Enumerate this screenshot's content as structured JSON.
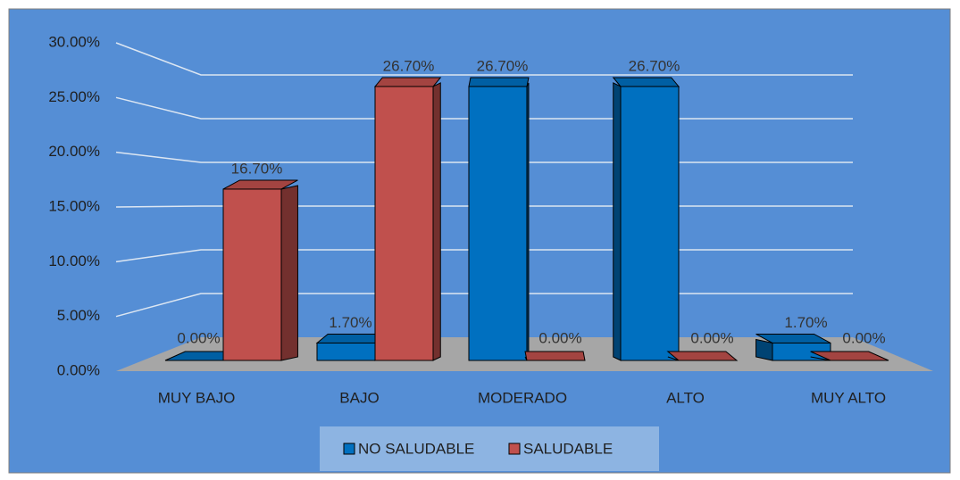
{
  "chart_data": {
    "type": "bar3d",
    "categories": [
      "MUY BAJO",
      "BAJO",
      "MODERADO",
      "ALTO",
      "MUY ALTO"
    ],
    "series": [
      {
        "name": "NO SALUDABLE",
        "color": "#0070c0",
        "values": [
          0,
          1.7,
          26.7,
          26.7,
          1.7
        ],
        "value_labels": [
          "0.00%",
          "1.70%",
          "26.70%",
          "26.70%",
          "1.70%"
        ]
      },
      {
        "name": "SALUDABLE",
        "color": "#c0504d",
        "values": [
          16.7,
          26.7,
          0,
          0,
          0
        ],
        "value_labels": [
          "16.70%",
          "26.70%",
          "0.00%",
          "0.00%",
          "0.00%"
        ]
      }
    ],
    "ylim": [
      0,
      30
    ],
    "yticks": [
      {
        "value": 0,
        "label": "0.00%"
      },
      {
        "value": 5,
        "label": "5.00%"
      },
      {
        "value": 10,
        "label": "10.00%"
      },
      {
        "value": 15,
        "label": "15.00%"
      },
      {
        "value": 20,
        "label": "20.00%"
      },
      {
        "value": 25,
        "label": "25.00%"
      },
      {
        "value": 30,
        "label": "30.00%"
      }
    ],
    "grid": true,
    "legend": "bottom"
  }
}
